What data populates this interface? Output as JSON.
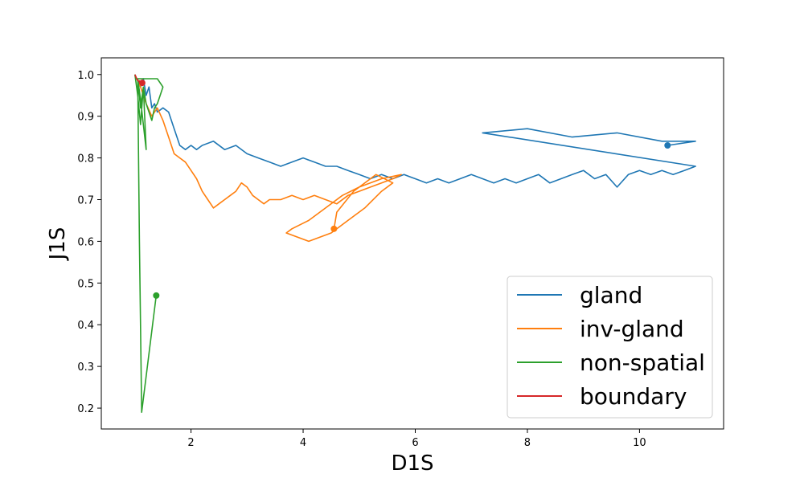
{
  "chart_data": {
    "type": "line",
    "title": "",
    "xlabel": "D1S",
    "ylabel": "J1S",
    "xlim": [
      0.4,
      11.5
    ],
    "ylim": [
      0.15,
      1.04
    ],
    "xticks": [
      2,
      4,
      6,
      8,
      10
    ],
    "yticks": [
      0.2,
      0.3,
      0.4,
      0.5,
      0.6,
      0.7,
      0.8,
      0.9,
      1.0
    ],
    "xtick_labels": [
      "2",
      "4",
      "6",
      "8",
      "10"
    ],
    "ytick_labels": [
      "0.2",
      "0.3",
      "0.4",
      "0.5",
      "0.6",
      "0.7",
      "0.8",
      "0.9",
      "1.0"
    ],
    "grid": false,
    "legend_position": "lower-right",
    "series": [
      {
        "name": "gland",
        "color": "#1f77b4",
        "x": [
          1.0,
          1.1,
          1.15,
          1.2,
          1.25,
          1.3,
          1.35,
          1.4,
          1.5,
          1.6,
          1.7,
          1.75,
          1.8,
          1.9,
          2.0,
          2.1,
          2.2,
          2.4,
          2.6,
          2.8,
          3.0,
          3.2,
          3.4,
          3.6,
          3.8,
          4.0,
          4.2,
          4.4,
          4.6,
          4.8,
          5.0,
          5.2,
          5.4,
          5.6,
          5.8,
          6.0,
          6.2,
          6.4,
          6.6,
          6.8,
          7.0,
          7.2,
          7.4,
          7.6,
          7.8,
          8.0,
          8.2,
          8.4,
          8.6,
          8.8,
          9.0,
          9.2,
          9.4,
          9.6,
          9.8,
          10.0,
          10.2,
          10.4,
          10.6,
          10.8,
          11.0,
          7.2,
          8.0,
          8.8,
          9.6,
          10.4,
          11.0,
          10.5
        ],
        "y": [
          1.0,
          0.97,
          0.99,
          0.95,
          0.97,
          0.92,
          0.93,
          0.91,
          0.92,
          0.91,
          0.87,
          0.85,
          0.83,
          0.82,
          0.83,
          0.82,
          0.83,
          0.84,
          0.82,
          0.83,
          0.81,
          0.8,
          0.79,
          0.78,
          0.79,
          0.8,
          0.79,
          0.78,
          0.78,
          0.77,
          0.76,
          0.75,
          0.76,
          0.75,
          0.76,
          0.75,
          0.74,
          0.75,
          0.74,
          0.75,
          0.76,
          0.75,
          0.74,
          0.75,
          0.74,
          0.75,
          0.76,
          0.74,
          0.75,
          0.76,
          0.77,
          0.75,
          0.76,
          0.73,
          0.76,
          0.77,
          0.76,
          0.77,
          0.76,
          0.77,
          0.78,
          0.86,
          0.87,
          0.85,
          0.86,
          0.84,
          0.84,
          0.83
        ]
      },
      {
        "name": "inv-gland",
        "color": "#ff7f0e",
        "x": [
          1.0,
          1.1,
          1.2,
          1.3,
          1.4,
          1.5,
          1.6,
          1.7,
          1.8,
          1.9,
          2.0,
          2.1,
          2.2,
          2.3,
          2.4,
          2.5,
          2.6,
          2.7,
          2.8,
          2.9,
          3.0,
          3.1,
          3.2,
          3.3,
          3.4,
          3.6,
          3.8,
          4.0,
          4.2,
          4.4,
          4.6,
          4.8,
          5.0,
          5.2,
          5.4,
          5.6,
          5.75,
          5.4,
          5.0,
          4.7,
          4.4,
          4.1,
          3.8,
          3.7,
          4.1,
          4.5,
          4.8,
          5.1,
          5.4,
          5.6,
          5.3,
          4.9,
          4.6,
          4.55
        ],
        "y": [
          1.0,
          0.97,
          0.93,
          0.9,
          0.92,
          0.89,
          0.85,
          0.81,
          0.8,
          0.79,
          0.77,
          0.75,
          0.72,
          0.7,
          0.68,
          0.69,
          0.7,
          0.71,
          0.72,
          0.74,
          0.73,
          0.71,
          0.7,
          0.69,
          0.7,
          0.7,
          0.71,
          0.7,
          0.71,
          0.7,
          0.69,
          0.71,
          0.72,
          0.73,
          0.74,
          0.75,
          0.76,
          0.75,
          0.73,
          0.71,
          0.68,
          0.65,
          0.63,
          0.62,
          0.6,
          0.62,
          0.65,
          0.68,
          0.72,
          0.74,
          0.76,
          0.72,
          0.67,
          0.63
        ]
      },
      {
        "name": "non-spatial",
        "color": "#2ca02c",
        "x": [
          1.0,
          1.05,
          1.1,
          1.15,
          1.2,
          1.1,
          1.05,
          1.3,
          1.4,
          1.5,
          1.45,
          1.4,
          1.35,
          1.3,
          1.2,
          1.15,
          1.1,
          1.05,
          1.08,
          1.12,
          1.38
        ],
        "y": [
          1.0,
          0.95,
          0.88,
          0.97,
          0.82,
          0.94,
          0.99,
          0.99,
          0.99,
          0.97,
          0.95,
          0.93,
          0.92,
          0.89,
          0.93,
          0.97,
          0.92,
          0.99,
          0.6,
          0.19,
          0.47
        ]
      },
      {
        "name": "boundary",
        "color": "#d62728",
        "x": [
          1.0,
          1.03,
          1.06,
          1.09,
          1.12,
          1.1,
          1.08,
          1.11,
          1.13
        ],
        "y": [
          1.0,
          0.99,
          0.985,
          0.98,
          0.975,
          0.98,
          0.985,
          0.978,
          0.98
        ]
      }
    ]
  }
}
